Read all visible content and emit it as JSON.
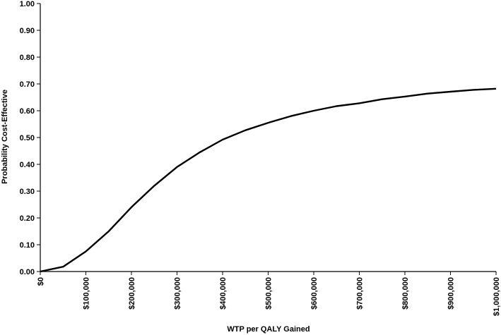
{
  "chart_data": {
    "type": "line",
    "title": "",
    "xlabel": "WTP per QALY Gained",
    "ylabel": "Probability Cost-Effective",
    "xlim": [
      0,
      1000000
    ],
    "ylim": [
      0,
      1
    ],
    "x_tick_values": [
      0,
      100000,
      200000,
      300000,
      400000,
      500000,
      600000,
      700000,
      800000,
      900000,
      1000000
    ],
    "x_tick_labels": [
      "$0",
      "$100,000",
      "$200,000",
      "$300,000",
      "$400,000",
      "$500,000",
      "$600,000",
      "$700,000",
      "$800,000",
      "$900,000",
      "$1,000,000"
    ],
    "y_tick_values": [
      0,
      0.1,
      0.2,
      0.3,
      0.4,
      0.5,
      0.6,
      0.7,
      0.8,
      0.9,
      1.0
    ],
    "y_tick_labels": [
      "0.00",
      "0.10",
      "0.20",
      "0.30",
      "0.40",
      "0.50",
      "0.60",
      "0.70",
      "0.80",
      "0.90",
      "1.00"
    ],
    "grid": false,
    "legend": "none",
    "line_color": "#000000",
    "series": [
      {
        "x": [
          0,
          50000,
          100000,
          150000,
          200000,
          250000,
          300000,
          350000,
          400000,
          450000,
          500000,
          550000,
          600000,
          650000,
          700000,
          750000,
          800000,
          850000,
          900000,
          950000,
          1000000
        ],
        "values": [
          0.0,
          0.018,
          0.075,
          0.15,
          0.24,
          0.32,
          0.39,
          0.445,
          0.492,
          0.527,
          0.555,
          0.58,
          0.6,
          0.617,
          0.628,
          0.643,
          0.653,
          0.664,
          0.671,
          0.678,
          0.682
        ]
      }
    ]
  }
}
